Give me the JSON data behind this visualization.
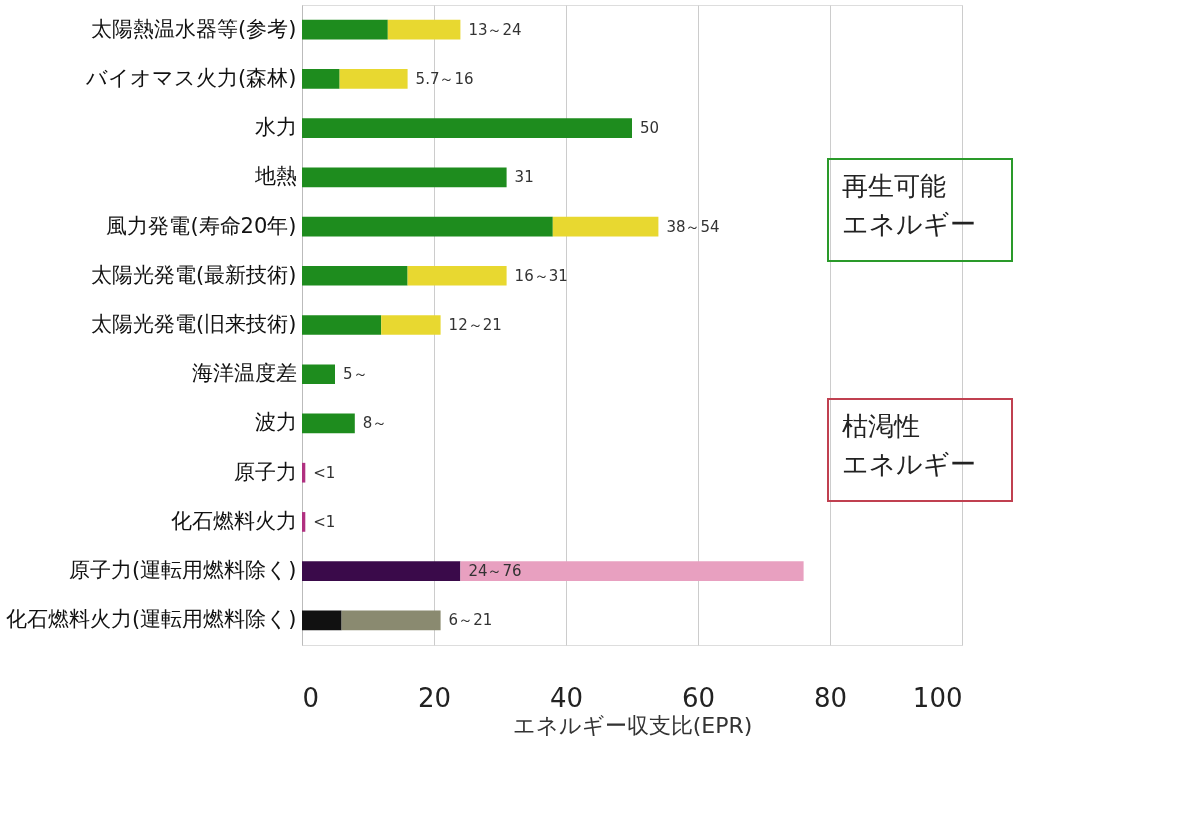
{
  "chart_data": {
    "type": "bar",
    "orientation": "horizontal",
    "stacked": true,
    "categories": [
      "太陽熱温水器等(参考)",
      "バイオマス火力(森林)",
      "水力",
      "地熱",
      "風力発電(寿命20年)",
      "太陽光発電(最新技術)",
      "太陽光発電(旧来技術)",
      "海洋温度差",
      "波力",
      "原子力",
      "化石燃料火力",
      "原子力(運転用燃料除く)",
      "化石燃料火力(運転用燃料除く)"
    ],
    "series": [
      {
        "colors": [
          "#1e8c1e",
          "#1e8c1e",
          "#1e8c1e",
          "#1e8c1e",
          "#1e8c1e",
          "#1e8c1e",
          "#1e8c1e",
          "#1e8c1e",
          "#1e8c1e",
          "#b03080",
          "#b03080",
          "#3a0a4a",
          "#111111"
        ],
        "values": [
          13,
          5.7,
          50,
          31,
          38,
          16,
          12,
          5,
          8,
          0.5,
          0.5,
          24,
          6
        ]
      },
      {
        "colors": [
          "#e8d830",
          "#e8d830",
          "#e8d830",
          "#e8d830",
          "#e8d830",
          "#e8d830",
          "#e8d830",
          "#e8d830",
          "#e8d830",
          "#e8a0c0",
          "#e8a0c0",
          "#e8a0c0",
          "#8a8a70"
        ],
        "values": [
          11,
          10.3,
          null,
          null,
          16,
          15,
          9,
          null,
          null,
          null,
          null,
          52,
          15
        ]
      }
    ],
    "value_labels": [
      "13～24",
      "5.7～16",
      "50",
      "31",
      "38～54",
      "16～31",
      "12～21",
      "5～",
      "8～",
      "<1",
      "<1",
      "24～76",
      "6～21"
    ],
    "xlabel": "エネルギー収支比(EPR)",
    "xlim": [
      0,
      100
    ],
    "xticks": [
      0,
      20,
      40,
      60,
      80,
      100
    ],
    "grid": "x",
    "annotations": [
      "再生可能",
      "エネルギー",
      "枯渇性",
      "エネルギー"
    ]
  }
}
